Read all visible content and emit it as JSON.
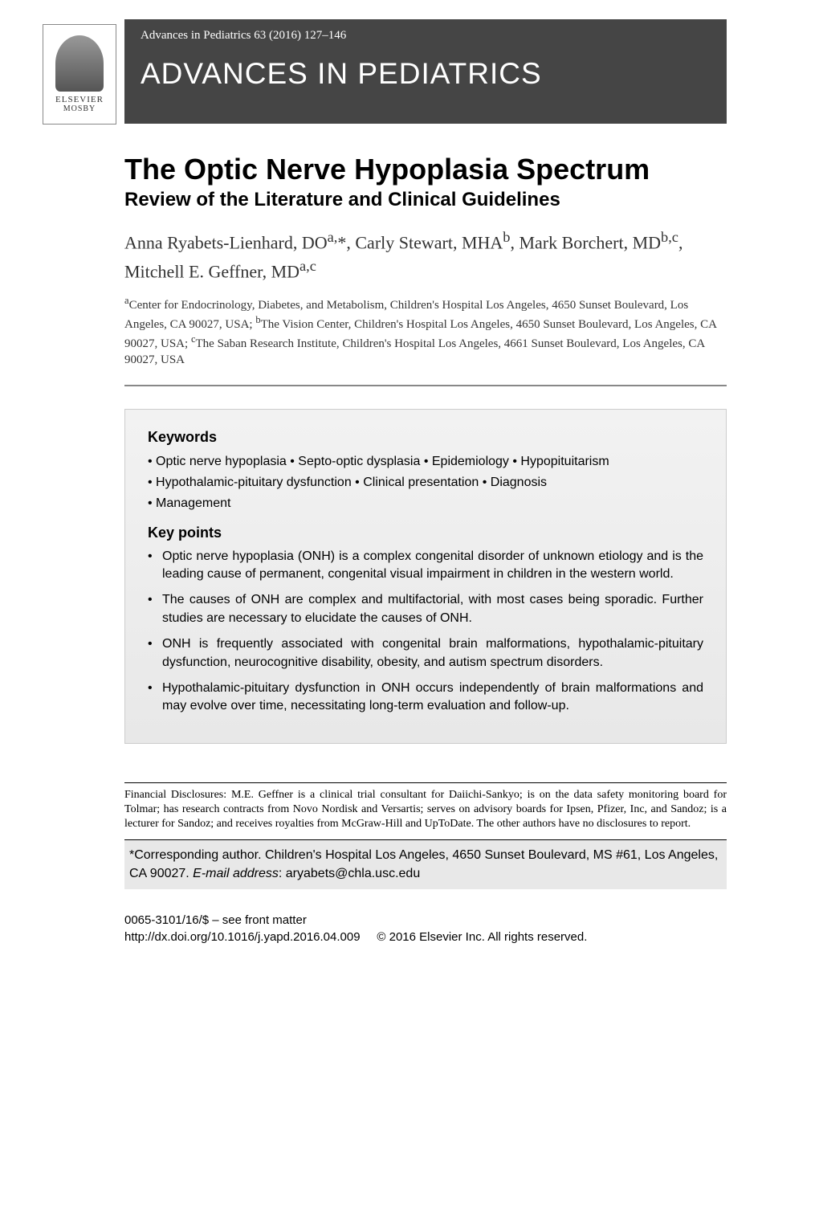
{
  "logo": {
    "line1": "ELSEVIER",
    "line2": "MOSBY"
  },
  "header": {
    "citation": "Advances in Pediatrics 63 (2016) 127–146",
    "journal": "ADVANCES IN PEDIATRICS"
  },
  "article": {
    "title": "The Optic Nerve Hypoplasia Spectrum",
    "subtitle": "Review of the Literature and Clinical Guidelines",
    "authors_html": "Anna Ryabets-Lienhard, DO<sup>a,</sup>*, Carly Stewart, MHA<sup>b</sup>, Mark Borchert, MD<sup>b,c</sup>, Mitchell E. Geffner, MD<sup>a,c</sup>",
    "affiliations_html": "<sup>a</sup>Center for Endocrinology, Diabetes, and Metabolism, Children's Hospital Los Angeles, 4650 Sunset Boulevard, Los Angeles, CA 90027, USA; <sup>b</sup>The Vision Center, Children's Hospital Los Angeles, 4650 Sunset Boulevard, Los Angeles, CA 90027, USA; <sup>c</sup>The Saban Research Institute, Children's Hospital Los Angeles, 4661 Sunset Boulevard, Los Angeles, CA 90027, USA"
  },
  "keywords": {
    "heading": "Keywords",
    "lines": [
      "• Optic nerve hypoplasia • Septo-optic dysplasia • Epidemiology • Hypopituitarism",
      "• Hypothalamic-pituitary dysfunction • Clinical presentation • Diagnosis",
      "• Management"
    ]
  },
  "keypoints": {
    "heading": "Key points",
    "items": [
      "Optic nerve hypoplasia (ONH) is a complex congenital disorder of unknown etiology and is the leading cause of permanent, congenital visual impairment in children in the western world.",
      "The causes of ONH are complex and multifactorial, with most cases being sporadic. Further studies are necessary to elucidate the causes of ONH.",
      "ONH is frequently associated with congenital brain malformations, hypothalamic-pituitary dysfunction, neurocognitive disability, obesity, and autism spectrum disorders.",
      "Hypothalamic-pituitary dysfunction in ONH occurs independently of brain malformations and may evolve over time, necessitating long-term evaluation and follow-up."
    ]
  },
  "disclosures": "Financial Disclosures: M.E. Geffner is a clinical trial consultant for Daiichi-Sankyo; is on the data safety monitoring board for Tolmar; has research contracts from Novo Nordisk and Versartis; serves on advisory boards for Ipsen, Pfizer, Inc, and Sandoz; is a lecturer for Sandoz; and receives royalties from McGraw-Hill and UpToDate. The other authors have no disclosures to report.",
  "corresponding": {
    "text": "*Corresponding author. Children's Hospital Los Angeles, 4650 Sunset Boulevard, MS #61, Los Angeles, CA 90027. ",
    "email_label": "E-mail address",
    "email": "aryabets@chla.usc.edu"
  },
  "footer": {
    "issn": "0065-3101/16/$ – see front matter",
    "doi": "http://dx.doi.org/10.1016/j.yapd.2016.04.009",
    "copyright": "© 2016 Elsevier Inc. All rights reserved."
  },
  "colors": {
    "header_bg": "#454545",
    "box_bg": "#e8e8e8",
    "text": "#000000",
    "rule": "#888888"
  }
}
